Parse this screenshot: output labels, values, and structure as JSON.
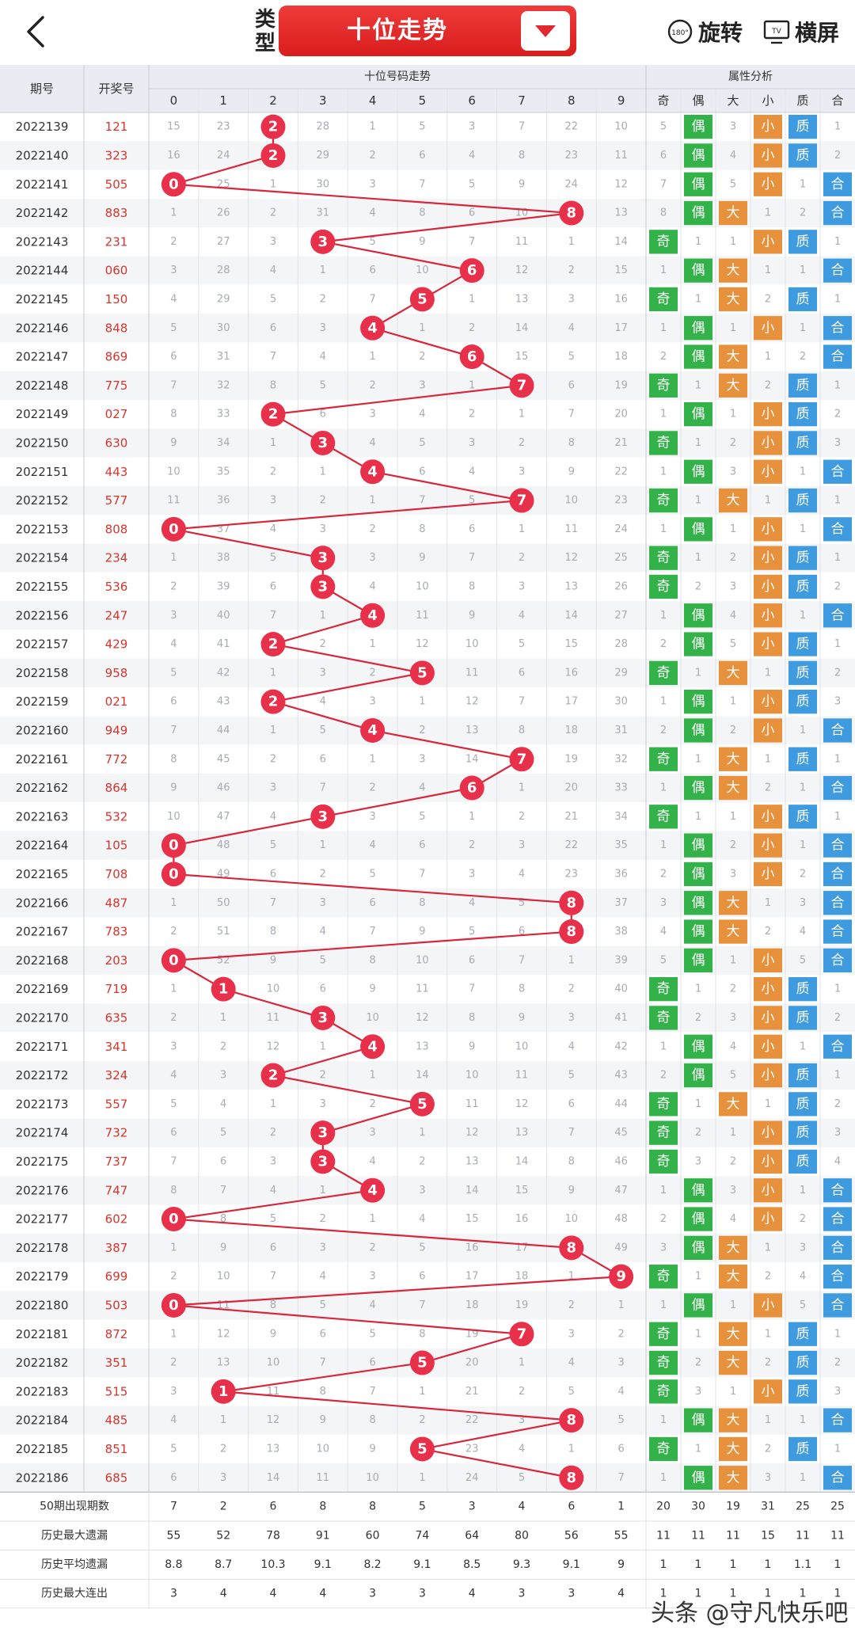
{
  "header": {
    "type_label": "类型",
    "type_button": "十位走势",
    "rotate_label": "旋转",
    "rotate_badge": "180°",
    "landscape_label": "横屏",
    "landscape_badge": "TV"
  },
  "table": {
    "col_period": "期号",
    "col_draw": "开奖号",
    "group_trend": "十位号码走势",
    "group_attr": "属性分析",
    "digit_headers": [
      "0",
      "1",
      "2",
      "3",
      "4",
      "5",
      "6",
      "7",
      "8",
      "9"
    ],
    "attr_headers": [
      "奇",
      "偶",
      "大",
      "小",
      "质",
      "合"
    ],
    "labels": {
      "odd": "奇",
      "even": "偶",
      "big": "大",
      "small": "小",
      "prime": "质",
      "composite": "合"
    }
  },
  "colors": {
    "red": "#e8304a",
    "line": "#d8263a",
    "green": "#33b24a",
    "orange": "#e8913c",
    "blue": "#3f9be0",
    "draw_red": "#d9342b"
  },
  "chart_data": {
    "type": "table",
    "rows": [
      {
        "period": "2022139",
        "draw": "121",
        "miss": [
          15,
          23,
          null,
          28,
          1,
          5,
          3,
          7,
          22,
          10
        ],
        "attr": [
          5,
          "偶",
          3,
          "小",
          "质",
          1
        ]
      },
      {
        "period": "2022140",
        "draw": "323",
        "miss": [
          16,
          24,
          null,
          29,
          2,
          6,
          4,
          8,
          23,
          11
        ],
        "attr": [
          6,
          "偶",
          4,
          "小",
          "质",
          2
        ]
      },
      {
        "period": "2022141",
        "draw": "505",
        "miss": [
          null,
          25,
          1,
          30,
          3,
          7,
          5,
          9,
          24,
          12
        ],
        "attr": [
          7,
          "偶",
          5,
          "小",
          1,
          "合"
        ]
      },
      {
        "period": "2022142",
        "draw": "883",
        "miss": [
          1,
          26,
          2,
          31,
          4,
          8,
          6,
          10,
          null,
          13
        ],
        "attr": [
          8,
          "偶",
          "大",
          1,
          2,
          "合"
        ]
      },
      {
        "period": "2022143",
        "draw": "231",
        "miss": [
          2,
          27,
          3,
          null,
          5,
          9,
          7,
          11,
          1,
          14
        ],
        "attr": [
          "奇",
          1,
          1,
          "小",
          "质",
          1
        ]
      },
      {
        "period": "2022144",
        "draw": "060",
        "miss": [
          3,
          28,
          4,
          1,
          6,
          10,
          null,
          12,
          2,
          15
        ],
        "attr": [
          1,
          "偶",
          "大",
          1,
          1,
          "合"
        ]
      },
      {
        "period": "2022145",
        "draw": "150",
        "miss": [
          4,
          29,
          5,
          2,
          7,
          null,
          1,
          13,
          3,
          16
        ],
        "attr": [
          "奇",
          1,
          "大",
          2,
          "质",
          1
        ]
      },
      {
        "period": "2022146",
        "draw": "848",
        "miss": [
          5,
          30,
          6,
          3,
          null,
          1,
          2,
          14,
          4,
          17
        ],
        "attr": [
          1,
          "偶",
          1,
          "小",
          1,
          "合"
        ]
      },
      {
        "period": "2022147",
        "draw": "869",
        "miss": [
          6,
          31,
          7,
          4,
          1,
          2,
          null,
          15,
          5,
          18
        ],
        "attr": [
          2,
          "偶",
          "大",
          1,
          2,
          "合"
        ]
      },
      {
        "period": "2022148",
        "draw": "775",
        "miss": [
          7,
          32,
          8,
          5,
          2,
          3,
          1,
          null,
          6,
          19
        ],
        "attr": [
          "奇",
          1,
          "大",
          2,
          "质",
          1
        ]
      },
      {
        "period": "2022149",
        "draw": "027",
        "miss": [
          8,
          33,
          null,
          6,
          3,
          4,
          2,
          1,
          7,
          20
        ],
        "attr": [
          1,
          "偶",
          1,
          "小",
          "质",
          2
        ]
      },
      {
        "period": "2022150",
        "draw": "630",
        "miss": [
          9,
          34,
          1,
          null,
          4,
          5,
          3,
          2,
          8,
          21
        ],
        "attr": [
          "奇",
          1,
          2,
          "小",
          "质",
          3
        ]
      },
      {
        "period": "2022151",
        "draw": "443",
        "miss": [
          10,
          35,
          2,
          1,
          null,
          6,
          4,
          3,
          9,
          22
        ],
        "attr": [
          1,
          "偶",
          3,
          "小",
          1,
          "合"
        ]
      },
      {
        "period": "2022152",
        "draw": "577",
        "miss": [
          11,
          36,
          3,
          2,
          1,
          7,
          5,
          null,
          10,
          23
        ],
        "attr": [
          "奇",
          1,
          "大",
          1,
          "质",
          1
        ]
      },
      {
        "period": "2022153",
        "draw": "808",
        "miss": [
          null,
          37,
          4,
          3,
          2,
          8,
          6,
          1,
          11,
          24
        ],
        "attr": [
          1,
          "偶",
          1,
          "小",
          1,
          "合"
        ]
      },
      {
        "period": "2022154",
        "draw": "234",
        "miss": [
          1,
          38,
          5,
          null,
          3,
          9,
          7,
          2,
          12,
          25
        ],
        "attr": [
          "奇",
          1,
          2,
          "小",
          "质",
          1
        ]
      },
      {
        "period": "2022155",
        "draw": "536",
        "miss": [
          2,
          39,
          6,
          null,
          4,
          10,
          8,
          3,
          13,
          26
        ],
        "attr": [
          "奇",
          2,
          3,
          "小",
          "质",
          2
        ]
      },
      {
        "period": "2022156",
        "draw": "247",
        "miss": [
          3,
          40,
          7,
          1,
          null,
          11,
          9,
          4,
          14,
          27
        ],
        "attr": [
          1,
          "偶",
          4,
          "小",
          1,
          "合"
        ]
      },
      {
        "period": "2022157",
        "draw": "429",
        "miss": [
          4,
          41,
          null,
          2,
          1,
          12,
          10,
          5,
          15,
          28
        ],
        "attr": [
          2,
          "偶",
          5,
          "小",
          "质",
          1
        ]
      },
      {
        "period": "2022158",
        "draw": "958",
        "miss": [
          5,
          42,
          1,
          3,
          2,
          null,
          11,
          6,
          16,
          29
        ],
        "attr": [
          "奇",
          1,
          "大",
          1,
          "质",
          2
        ]
      },
      {
        "period": "2022159",
        "draw": "021",
        "miss": [
          6,
          43,
          null,
          4,
          3,
          1,
          12,
          7,
          17,
          30
        ],
        "attr": [
          1,
          "偶",
          1,
          "小",
          "质",
          3
        ]
      },
      {
        "period": "2022160",
        "draw": "949",
        "miss": [
          7,
          44,
          1,
          5,
          null,
          2,
          13,
          8,
          18,
          31
        ],
        "attr": [
          2,
          "偶",
          2,
          "小",
          1,
          "合"
        ]
      },
      {
        "period": "2022161",
        "draw": "772",
        "miss": [
          8,
          45,
          2,
          6,
          1,
          3,
          14,
          null,
          19,
          32
        ],
        "attr": [
          "奇",
          1,
          "大",
          1,
          "质",
          1
        ]
      },
      {
        "period": "2022162",
        "draw": "864",
        "miss": [
          9,
          46,
          3,
          7,
          2,
          4,
          null,
          1,
          20,
          33
        ],
        "attr": [
          1,
          "偶",
          "大",
          2,
          1,
          "合"
        ]
      },
      {
        "period": "2022163",
        "draw": "532",
        "miss": [
          10,
          47,
          4,
          null,
          3,
          5,
          1,
          2,
          21,
          34
        ],
        "attr": [
          "奇",
          1,
          1,
          "小",
          "质",
          1
        ]
      },
      {
        "period": "2022164",
        "draw": "105",
        "miss": [
          null,
          48,
          5,
          1,
          4,
          6,
          2,
          3,
          22,
          35
        ],
        "attr": [
          1,
          "偶",
          2,
          "小",
          1,
          "合"
        ]
      },
      {
        "period": "2022165",
        "draw": "708",
        "miss": [
          null,
          49,
          6,
          2,
          5,
          7,
          3,
          4,
          23,
          36
        ],
        "attr": [
          2,
          "偶",
          3,
          "小",
          2,
          "合"
        ]
      },
      {
        "period": "2022166",
        "draw": "487",
        "miss": [
          1,
          50,
          7,
          3,
          6,
          8,
          4,
          5,
          null,
          37
        ],
        "attr": [
          3,
          "偶",
          "大",
          1,
          3,
          "合"
        ]
      },
      {
        "period": "2022167",
        "draw": "783",
        "miss": [
          2,
          51,
          8,
          4,
          7,
          9,
          5,
          6,
          null,
          38
        ],
        "attr": [
          4,
          "偶",
          "大",
          2,
          4,
          "合"
        ]
      },
      {
        "period": "2022168",
        "draw": "203",
        "miss": [
          null,
          52,
          9,
          5,
          8,
          10,
          6,
          7,
          1,
          39
        ],
        "attr": [
          5,
          "偶",
          1,
          "小",
          5,
          "合"
        ]
      },
      {
        "period": "2022169",
        "draw": "719",
        "miss": [
          1,
          null,
          10,
          6,
          9,
          11,
          7,
          8,
          2,
          40
        ],
        "attr": [
          "奇",
          1,
          2,
          "小",
          "质",
          1
        ]
      },
      {
        "period": "2022170",
        "draw": "635",
        "miss": [
          2,
          1,
          11,
          null,
          10,
          12,
          8,
          9,
          3,
          41
        ],
        "attr": [
          "奇",
          2,
          3,
          "小",
          "质",
          2
        ]
      },
      {
        "period": "2022171",
        "draw": "341",
        "miss": [
          3,
          2,
          12,
          1,
          null,
          13,
          9,
          10,
          4,
          42
        ],
        "attr": [
          1,
          "偶",
          4,
          "小",
          1,
          "合"
        ]
      },
      {
        "period": "2022172",
        "draw": "324",
        "miss": [
          4,
          3,
          null,
          2,
          1,
          14,
          10,
          11,
          5,
          43
        ],
        "attr": [
          2,
          "偶",
          5,
          "小",
          "质",
          1
        ]
      },
      {
        "period": "2022173",
        "draw": "557",
        "miss": [
          5,
          4,
          1,
          3,
          2,
          null,
          11,
          12,
          6,
          44
        ],
        "attr": [
          "奇",
          1,
          "大",
          1,
          "质",
          2
        ]
      },
      {
        "period": "2022174",
        "draw": "732",
        "miss": [
          6,
          5,
          2,
          null,
          3,
          1,
          12,
          13,
          7,
          45
        ],
        "attr": [
          "奇",
          2,
          1,
          "小",
          "质",
          3
        ]
      },
      {
        "period": "2022175",
        "draw": "737",
        "miss": [
          7,
          6,
          3,
          null,
          4,
          2,
          13,
          14,
          8,
          46
        ],
        "attr": [
          "奇",
          3,
          2,
          "小",
          "质",
          4
        ]
      },
      {
        "period": "2022176",
        "draw": "747",
        "miss": [
          8,
          7,
          4,
          1,
          null,
          3,
          14,
          15,
          9,
          47
        ],
        "attr": [
          1,
          "偶",
          3,
          "小",
          1,
          "合"
        ]
      },
      {
        "period": "2022177",
        "draw": "602",
        "miss": [
          null,
          8,
          5,
          2,
          1,
          4,
          15,
          16,
          10,
          48
        ],
        "attr": [
          2,
          "偶",
          4,
          "小",
          2,
          "合"
        ]
      },
      {
        "period": "2022178",
        "draw": "387",
        "miss": [
          1,
          9,
          6,
          3,
          2,
          5,
          16,
          17,
          null,
          49
        ],
        "attr": [
          3,
          "偶",
          "大",
          1,
          3,
          "合"
        ]
      },
      {
        "period": "2022179",
        "draw": "699",
        "miss": [
          2,
          10,
          7,
          4,
          3,
          6,
          17,
          18,
          1,
          null
        ],
        "attr": [
          "奇",
          1,
          "大",
          2,
          4,
          "合"
        ]
      },
      {
        "period": "2022180",
        "draw": "503",
        "miss": [
          null,
          11,
          8,
          5,
          4,
          7,
          18,
          19,
          2,
          1
        ],
        "attr": [
          1,
          "偶",
          1,
          "小",
          5,
          "合"
        ]
      },
      {
        "period": "2022181",
        "draw": "872",
        "miss": [
          1,
          12,
          9,
          6,
          5,
          8,
          19,
          null,
          3,
          2
        ],
        "attr": [
          "奇",
          1,
          "大",
          1,
          "质",
          1
        ]
      },
      {
        "period": "2022182",
        "draw": "351",
        "miss": [
          2,
          13,
          10,
          7,
          6,
          null,
          20,
          1,
          4,
          3
        ],
        "attr": [
          "奇",
          2,
          "大",
          2,
          "质",
          2
        ]
      },
      {
        "period": "2022183",
        "draw": "515",
        "miss": [
          3,
          null,
          11,
          8,
          7,
          1,
          21,
          2,
          5,
          4
        ],
        "attr": [
          "奇",
          3,
          1,
          "小",
          "质",
          3
        ]
      },
      {
        "period": "2022184",
        "draw": "485",
        "miss": [
          4,
          1,
          12,
          9,
          8,
          2,
          22,
          3,
          null,
          5
        ],
        "attr": [
          1,
          "偶",
          "大",
          1,
          1,
          "合"
        ]
      },
      {
        "period": "2022185",
        "draw": "851",
        "miss": [
          5,
          2,
          13,
          10,
          9,
          null,
          23,
          4,
          1,
          6
        ],
        "attr": [
          "奇",
          1,
          "大",
          2,
          "质",
          1
        ]
      },
      {
        "period": "2022186",
        "draw": "685",
        "miss": [
          6,
          3,
          14,
          11,
          10,
          1,
          24,
          5,
          null,
          7
        ],
        "attr": [
          1,
          "偶",
          "大",
          3,
          1,
          "合"
        ]
      }
    ],
    "stats": [
      {
        "label": "50期出现期数",
        "values": [
          "7",
          "2",
          "6",
          "8",
          "8",
          "5",
          "3",
          "4",
          "6",
          "1",
          "20",
          "30",
          "19",
          "31",
          "25",
          "25"
        ]
      },
      {
        "label": "历史最大遗漏",
        "values": [
          "55",
          "52",
          "78",
          "91",
          "60",
          "74",
          "64",
          "80",
          "56",
          "55",
          "11",
          "11",
          "11",
          "15",
          "11",
          "11"
        ]
      },
      {
        "label": "历史平均遗漏",
        "values": [
          "8.8",
          "8.7",
          "10.3",
          "9.1",
          "8.2",
          "9.1",
          "8.5",
          "9.3",
          "9.1",
          "9",
          "1",
          "1",
          "1",
          "1",
          "1.1",
          "1"
        ]
      },
      {
        "label": "历史最大连出",
        "values": [
          "3",
          "4",
          "4",
          "4",
          "3",
          "3",
          "4",
          "3",
          "3",
          "4",
          "1",
          "1",
          "1",
          "1",
          "1",
          "1"
        ]
      }
    ]
  },
  "watermark": "头条 @守凡快乐吧"
}
